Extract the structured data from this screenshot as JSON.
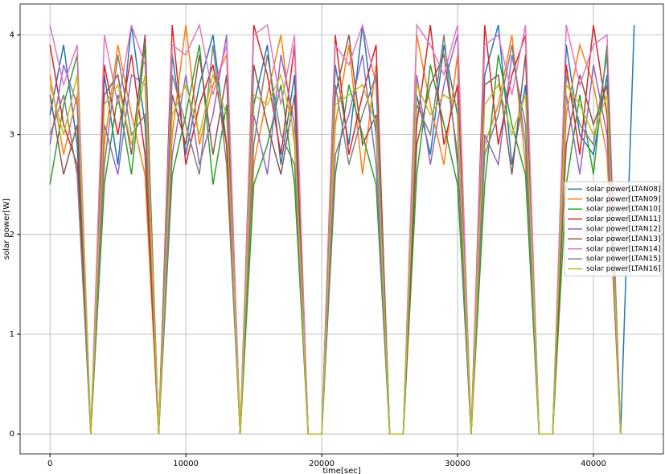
{
  "chart_data": {
    "type": "line",
    "xlabel": "time[sec]",
    "ylabel": "solar power[W]",
    "x": [
      0,
      1000,
      2000,
      3000,
      4000,
      5000,
      6000,
      7000,
      8000,
      9000,
      10000,
      11000,
      12000,
      13000,
      14000,
      15000,
      16000,
      17000,
      18000,
      19000,
      20000,
      21000,
      22000,
      23000,
      24000,
      25000,
      26000,
      27000,
      28000,
      29000,
      30000,
      31000,
      32000,
      33000,
      34000,
      35000,
      36000,
      37000,
      38000,
      39000,
      40000,
      41000,
      42000,
      43000
    ],
    "series": [
      {
        "name": "solar power[LTAN08]",
        "color": "#1f77b4",
        "values": [
          3.2,
          3.9,
          2.9,
          0,
          3.6,
          2.7,
          4.1,
          3.1,
          0,
          3.8,
          2.8,
          3.5,
          4.0,
          2.9,
          0,
          3.3,
          3.9,
          2.7,
          3.6,
          0,
          0,
          3.7,
          2.9,
          4.1,
          3.0,
          0,
          0,
          3.4,
          2.8,
          3.9,
          3.2,
          0,
          3.6,
          4.1,
          2.7,
          3.5,
          0,
          0,
          3.9,
          3.0,
          2.8,
          3.6,
          0,
          4.1
        ]
      },
      {
        "name": "solar power[LTAN09]",
        "color": "#ff7f0e",
        "values": [
          3.6,
          2.8,
          3.4,
          0,
          2.9,
          3.9,
          3.2,
          2.6,
          0,
          3.0,
          4.1,
          2.9,
          3.5,
          3.8,
          0,
          2.7,
          3.4,
          4.0,
          2.9,
          0,
          0,
          3.1,
          3.9,
          2.6,
          3.7,
          0,
          0,
          4.0,
          3.3,
          2.7,
          3.8,
          0,
          2.9,
          3.3,
          4.0,
          2.7,
          0,
          0,
          3.2,
          3.9,
          3.5,
          2.8,
          0,
          null
        ]
      },
      {
        "name": "solar power[LTAN10]",
        "color": "#2ca02c",
        "values": [
          2.5,
          3.3,
          3.8,
          0,
          2.5,
          3.4,
          2.6,
          3.9,
          0,
          2.6,
          3.2,
          3.9,
          2.5,
          3.3,
          0,
          2.5,
          2.9,
          3.5,
          2.5,
          0,
          0,
          2.6,
          3.5,
          3.0,
          2.5,
          0,
          0,
          2.6,
          3.7,
          3.1,
          2.5,
          0,
          2.5,
          3.8,
          3.1,
          2.6,
          0,
          0,
          2.5,
          3.4,
          2.6,
          3.9,
          0,
          null
        ]
      },
      {
        "name": "solar power[LTAN11]",
        "color": "#d62728",
        "values": [
          3.9,
          3.1,
          2.7,
          0,
          3.7,
          3.0,
          3.8,
          2.8,
          0,
          4.1,
          2.7,
          3.3,
          3.7,
          2.9,
          0,
          4.1,
          3.6,
          2.8,
          3.9,
          0,
          0,
          4.0,
          2.8,
          3.4,
          3.9,
          0,
          0,
          3.1,
          4.1,
          2.9,
          3.5,
          0,
          4.1,
          2.9,
          3.6,
          4.0,
          0,
          0,
          3.7,
          2.8,
          4.1,
          3.2,
          0,
          null
        ]
      },
      {
        "name": "solar power[LTAN12]",
        "color": "#9467bd",
        "values": [
          2.9,
          3.7,
          3.3,
          0,
          3.1,
          2.6,
          3.6,
          3.5,
          0,
          2.8,
          3.6,
          2.7,
          3.2,
          4.0,
          0,
          3.2,
          2.6,
          3.8,
          3.1,
          0,
          0,
          2.8,
          3.2,
          3.8,
          2.7,
          0,
          0,
          3.6,
          2.7,
          3.5,
          4.0,
          0,
          3.0,
          2.7,
          3.8,
          3.1,
          0,
          0,
          3.4,
          2.6,
          3.7,
          3.0,
          0,
          null
        ]
      },
      {
        "name": "solar power[LTAN13]",
        "color": "#8c564b",
        "values": [
          3.4,
          2.6,
          3.1,
          0,
          3.4,
          3.6,
          2.8,
          4.0,
          0,
          3.4,
          2.9,
          3.8,
          2.8,
          3.6,
          0,
          3.7,
          3.1,
          2.6,
          3.4,
          0,
          0,
          3.4,
          4.0,
          2.9,
          3.2,
          0,
          0,
          2.9,
          3.5,
          3.8,
          2.8,
          0,
          3.5,
          3.6,
          2.6,
          3.8,
          0,
          0,
          2.9,
          3.6,
          3.1,
          3.5,
          0,
          null
        ]
      },
      {
        "name": "solar power[LTAN14]",
        "color": "#e377c2",
        "values": [
          4.1,
          3.5,
          3.9,
          0,
          4.0,
          3.3,
          4.1,
          3.7,
          0,
          3.9,
          3.8,
          4.1,
          3.4,
          3.9,
          0,
          4.0,
          4.1,
          3.3,
          4.0,
          0,
          0,
          3.9,
          3.7,
          4.1,
          3.5,
          0,
          0,
          4.1,
          3.9,
          3.6,
          4.1,
          0,
          3.9,
          4.0,
          3.4,
          4.1,
          0,
          0,
          4.1,
          3.5,
          3.9,
          4.0,
          0,
          null
        ]
      },
      {
        "name": "solar power[LTAN15]",
        "color": "#7f7f7f",
        "values": [
          3.0,
          3.4,
          2.6,
          0,
          2.7,
          3.8,
          3.0,
          3.2,
          0,
          3.6,
          3.1,
          2.6,
          3.9,
          2.7,
          0,
          2.9,
          3.8,
          3.0,
          2.7,
          0,
          0,
          3.5,
          2.7,
          3.2,
          3.6,
          0,
          0,
          3.3,
          3.0,
          4.0,
          2.7,
          0,
          2.8,
          3.2,
          3.9,
          2.9,
          0,
          0,
          3.6,
          3.1,
          2.9,
          3.8,
          0,
          null
        ]
      },
      {
        "name": "solar power[LTAN16]",
        "color": "#bcbd22",
        "values": [
          3.5,
          3.0,
          3.6,
          0,
          3.3,
          3.5,
          2.9,
          3.6,
          0,
          3.2,
          3.5,
          3.0,
          3.6,
          3.2,
          0,
          3.4,
          3.3,
          3.6,
          3.0,
          0,
          0,
          3.3,
          3.4,
          3.5,
          3.1,
          0,
          0,
          3.5,
          3.2,
          3.4,
          3.3,
          0,
          3.3,
          3.5,
          3.0,
          3.4,
          0,
          0,
          3.5,
          3.3,
          3.0,
          3.4,
          0,
          null
        ]
      }
    ],
    "xlim": [
      -2200,
      45150
    ],
    "xticks": [
      0,
      10000,
      20000,
      30000,
      40000
    ],
    "ylim": [
      -0.2,
      4.31
    ],
    "yticks": [
      0,
      1,
      2,
      3,
      4
    ],
    "grid": true,
    "legend": "right"
  }
}
